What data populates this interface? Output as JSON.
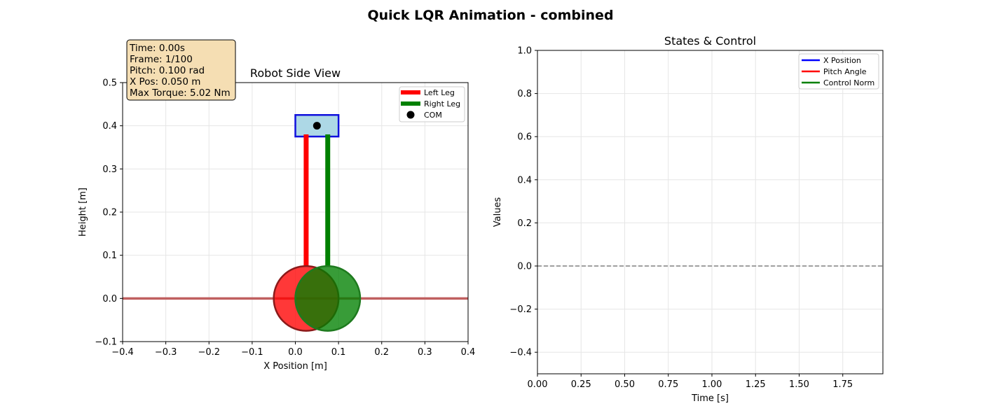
{
  "figure_title": "Quick LQR Animation - combined",
  "chart_data": [
    {
      "type": "scatter",
      "title": "Robot Side View",
      "xlabel": "X Position [m]",
      "ylabel": "Height [m]",
      "xlim": [
        -0.4,
        0.4
      ],
      "ylim": [
        -0.1,
        0.5
      ],
      "xticks": [
        -0.4,
        -0.3,
        -0.2,
        -0.1,
        0.0,
        0.1,
        0.2,
        0.3,
        0.4
      ],
      "yticks": [
        -0.1,
        0.0,
        0.1,
        0.2,
        0.3,
        0.4,
        0.5
      ],
      "xtick_labels": [
        "−0.4",
        "−0.3",
        "−0.2",
        "−0.1",
        "0.0",
        "0.1",
        "0.2",
        "0.3",
        "0.4"
      ],
      "ytick_labels": [
        "−0.1",
        "0.0",
        "0.1",
        "0.2",
        "0.3",
        "0.4",
        "0.5"
      ],
      "grid": true,
      "legend_position": "top-right",
      "ground": {
        "y": 0.0,
        "color": "#c06060"
      },
      "body": {
        "x_min": 0.0,
        "x_max": 0.1,
        "y_min": 0.375,
        "y_max": 0.425,
        "fill": "#add8e6",
        "edge": "#1010dd"
      },
      "com": {
        "x": 0.05,
        "y": 0.4,
        "label": "COM",
        "color": "#000000"
      },
      "legs": [
        {
          "name": "Left Leg",
          "x": 0.025,
          "y_top": 0.38,
          "y_bottom": 0.075,
          "color": "#ff0000"
        },
        {
          "name": "Right Leg",
          "x": 0.075,
          "y_top": 0.38,
          "y_bottom": 0.075,
          "color": "#008000"
        }
      ],
      "wheels": [
        {
          "x": 0.025,
          "y": 0.0,
          "r": 0.075,
          "fill": "#ff0000",
          "edge": "#8b1a1a"
        },
        {
          "x": 0.075,
          "y": 0.0,
          "r": 0.075,
          "fill": "#008000",
          "edge": "#1e7a1e"
        }
      ],
      "info_box": {
        "lines": [
          "Time: 0.00s",
          "Frame: 1/100",
          "Pitch: 0.100 rad",
          "X Pos: 0.050 m",
          "Max Torque: 5.02 Nm"
        ],
        "fill": "#f5deb3"
      }
    },
    {
      "type": "line",
      "title": "States & Control",
      "xlabel": "Time [s]",
      "ylabel": "Values",
      "xlim": [
        0.0,
        1.98
      ],
      "ylim": [
        -0.5,
        1.0
      ],
      "xticks": [
        0.0,
        0.25,
        0.5,
        0.75,
        1.0,
        1.25,
        1.5,
        1.75
      ],
      "yticks": [
        -0.4,
        -0.2,
        0.0,
        0.2,
        0.4,
        0.6,
        0.8,
        1.0
      ],
      "xtick_labels": [
        "0.00",
        "0.25",
        "0.50",
        "0.75",
        "1.00",
        "1.25",
        "1.50",
        "1.75"
      ],
      "ytick_labels": [
        "−0.4",
        "−0.2",
        "0.0",
        "0.2",
        "0.4",
        "0.6",
        "0.8",
        "1.0"
      ],
      "grid": true,
      "legend_position": "top-right",
      "reference_line": {
        "y": 0.0,
        "color": "#808080"
      },
      "series": [
        {
          "name": "X Position",
          "color": "#0000ff",
          "x": [],
          "y": []
        },
        {
          "name": "Pitch Angle",
          "color": "#ff0000",
          "x": [],
          "y": []
        },
        {
          "name": "Control Norm",
          "color": "#008000",
          "x": [],
          "y": []
        }
      ]
    }
  ]
}
